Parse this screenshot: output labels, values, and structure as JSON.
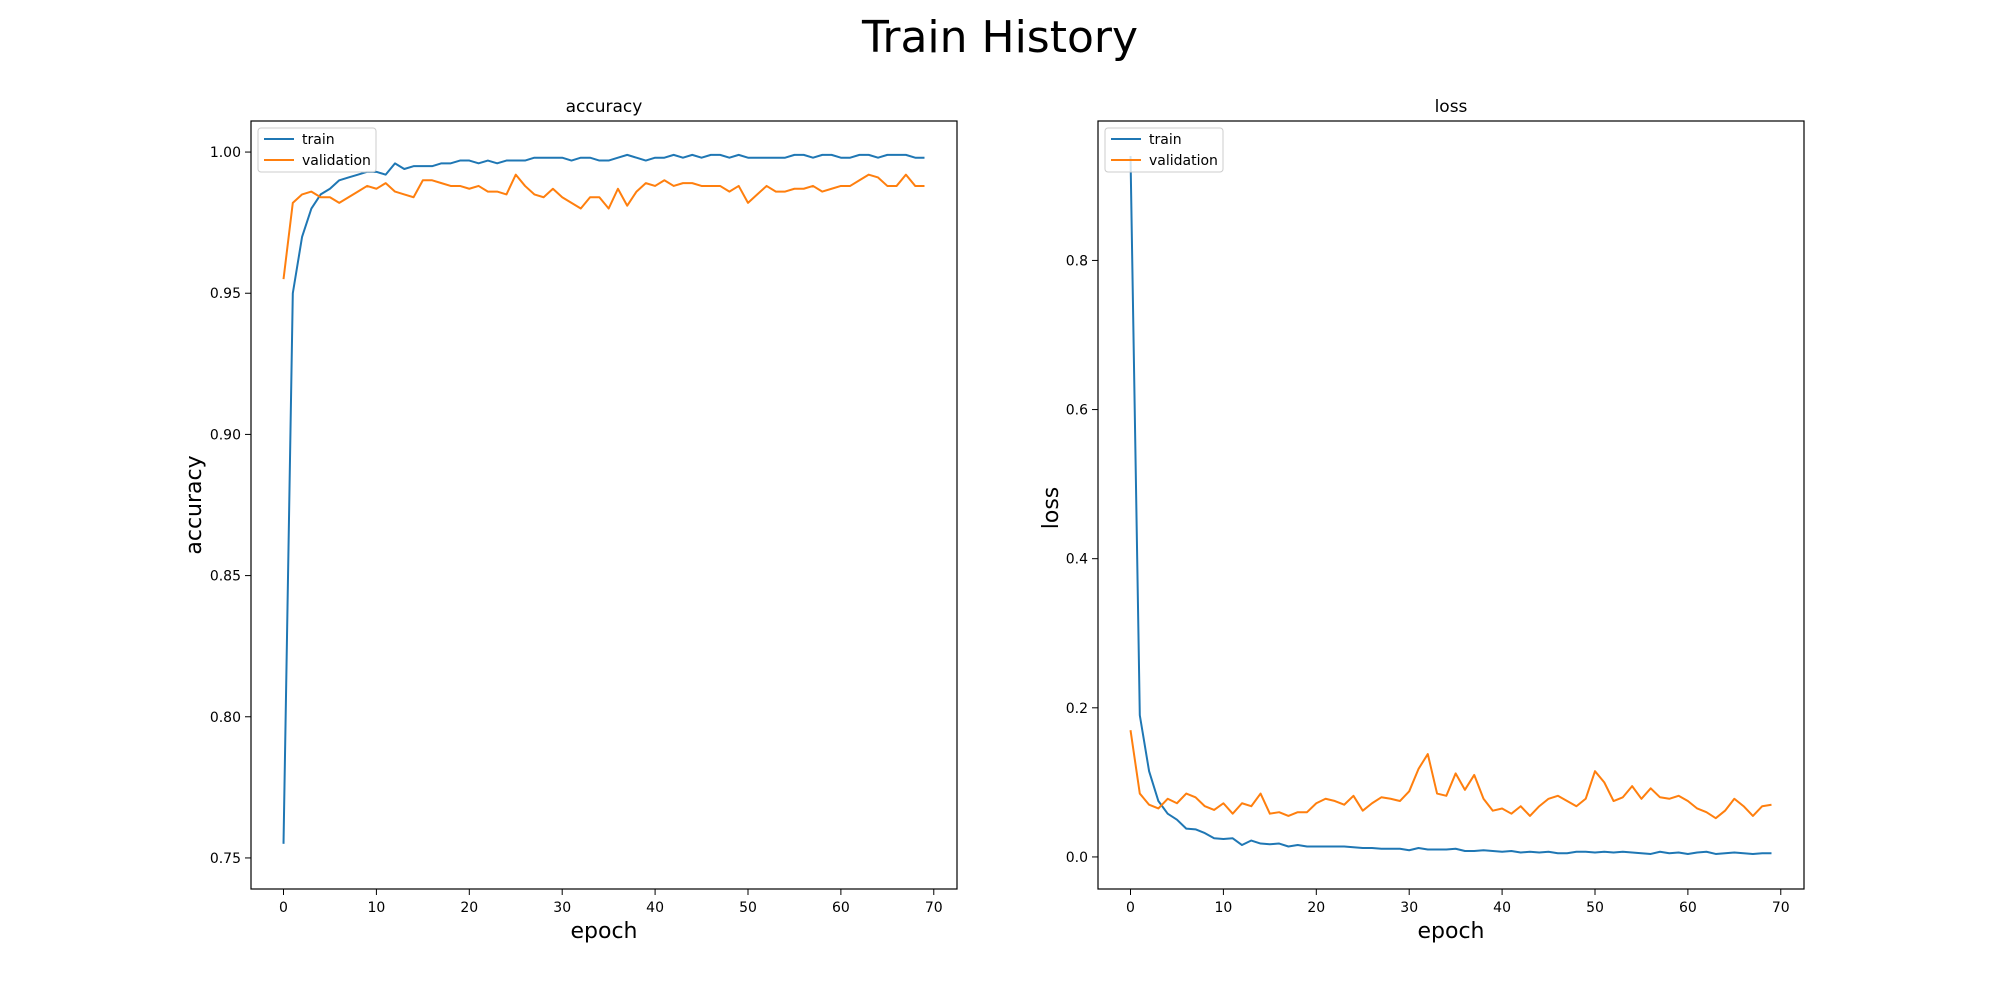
{
  "figure_title": "Train History",
  "chart_data": [
    {
      "type": "line",
      "title": "accuracy",
      "xlabel": "epoch",
      "ylabel": "accuracy",
      "xlim": [
        -3.5,
        72.5
      ],
      "ylim": [
        0.739,
        1.011
      ],
      "xticks": [
        0,
        10,
        20,
        30,
        40,
        50,
        60,
        70
      ],
      "yticks": [
        0.75,
        0.8,
        0.85,
        0.9,
        0.95,
        1.0
      ],
      "ytick_labels": [
        "0.75",
        "0.80",
        "0.85",
        "0.90",
        "0.95",
        "1.00"
      ],
      "legend_position": "upper-left",
      "grid": false,
      "series": [
        {
          "name": "train",
          "color": "#1f77b4",
          "values": [
            0.755,
            0.95,
            0.97,
            0.98,
            0.985,
            0.987,
            0.99,
            0.991,
            0.992,
            0.993,
            0.993,
            0.992,
            0.996,
            0.994,
            0.995,
            0.995,
            0.995,
            0.996,
            0.996,
            0.997,
            0.997,
            0.996,
            0.997,
            0.996,
            0.997,
            0.997,
            0.997,
            0.998,
            0.998,
            0.998,
            0.998,
            0.997,
            0.998,
            0.998,
            0.997,
            0.997,
            0.998,
            0.999,
            0.998,
            0.997,
            0.998,
            0.998,
            0.999,
            0.998,
            0.999,
            0.998,
            0.999,
            0.999,
            0.998,
            0.999,
            0.998,
            0.998,
            0.998,
            0.998,
            0.998,
            0.999,
            0.999,
            0.998,
            0.999,
            0.999,
            0.998,
            0.998,
            0.999,
            0.999,
            0.998,
            0.999,
            0.999,
            0.999,
            0.998,
            0.998
          ]
        },
        {
          "name": "validation",
          "color": "#ff7f0e",
          "values": [
            0.955,
            0.982,
            0.985,
            0.986,
            0.984,
            0.984,
            0.982,
            0.984,
            0.986,
            0.988,
            0.987,
            0.989,
            0.986,
            0.985,
            0.984,
            0.99,
            0.99,
            0.989,
            0.988,
            0.988,
            0.987,
            0.988,
            0.986,
            0.986,
            0.985,
            0.992,
            0.988,
            0.985,
            0.984,
            0.987,
            0.984,
            0.982,
            0.98,
            0.984,
            0.984,
            0.98,
            0.987,
            0.981,
            0.986,
            0.989,
            0.988,
            0.99,
            0.988,
            0.989,
            0.989,
            0.988,
            0.988,
            0.988,
            0.986,
            0.988,
            0.982,
            0.985,
            0.988,
            0.986,
            0.986,
            0.987,
            0.987,
            0.988,
            0.986,
            0.987,
            0.988,
            0.988,
            0.99,
            0.992,
            0.991,
            0.988,
            0.988,
            0.992,
            0.988,
            0.988
          ]
        }
      ]
    },
    {
      "type": "line",
      "title": "loss",
      "xlabel": "epoch",
      "ylabel": "loss",
      "xlim": [
        -3.5,
        72.5
      ],
      "ylim": [
        -0.043,
        0.987
      ],
      "xticks": [
        0,
        10,
        20,
        30,
        40,
        50,
        60,
        70
      ],
      "yticks": [
        0.0,
        0.2,
        0.4,
        0.6,
        0.8
      ],
      "ytick_labels": [
        "0.0",
        "0.2",
        "0.4",
        "0.6",
        "0.8"
      ],
      "legend_position": "upper-left",
      "grid": false,
      "series": [
        {
          "name": "train",
          "color": "#1f77b4",
          "values": [
            0.94,
            0.19,
            0.115,
            0.075,
            0.058,
            0.05,
            0.038,
            0.037,
            0.032,
            0.025,
            0.024,
            0.025,
            0.016,
            0.022,
            0.018,
            0.017,
            0.018,
            0.014,
            0.016,
            0.014,
            0.014,
            0.014,
            0.014,
            0.014,
            0.013,
            0.012,
            0.012,
            0.011,
            0.011,
            0.011,
            0.009,
            0.012,
            0.01,
            0.01,
            0.01,
            0.011,
            0.008,
            0.008,
            0.009,
            0.008,
            0.007,
            0.008,
            0.006,
            0.007,
            0.006,
            0.007,
            0.005,
            0.005,
            0.007,
            0.007,
            0.006,
            0.007,
            0.006,
            0.007,
            0.006,
            0.005,
            0.004,
            0.007,
            0.005,
            0.006,
            0.004,
            0.006,
            0.007,
            0.004,
            0.005,
            0.006,
            0.005,
            0.004,
            0.005,
            0.005
          ]
        },
        {
          "name": "validation",
          "color": "#ff7f0e",
          "values": [
            0.17,
            0.085,
            0.07,
            0.065,
            0.078,
            0.072,
            0.085,
            0.08,
            0.068,
            0.063,
            0.072,
            0.058,
            0.072,
            0.068,
            0.085,
            0.058,
            0.06,
            0.055,
            0.06,
            0.06,
            0.072,
            0.078,
            0.075,
            0.07,
            0.082,
            0.062,
            0.072,
            0.08,
            0.078,
            0.075,
            0.088,
            0.118,
            0.138,
            0.085,
            0.082,
            0.112,
            0.09,
            0.11,
            0.078,
            0.062,
            0.065,
            0.058,
            0.068,
            0.055,
            0.068,
            0.078,
            0.082,
            0.075,
            0.068,
            0.078,
            0.115,
            0.1,
            0.075,
            0.08,
            0.095,
            0.078,
            0.092,
            0.08,
            0.078,
            0.082,
            0.075,
            0.065,
            0.06,
            0.052,
            0.062,
            0.078,
            0.068,
            0.055,
            0.068,
            0.07
          ]
        }
      ]
    }
  ]
}
